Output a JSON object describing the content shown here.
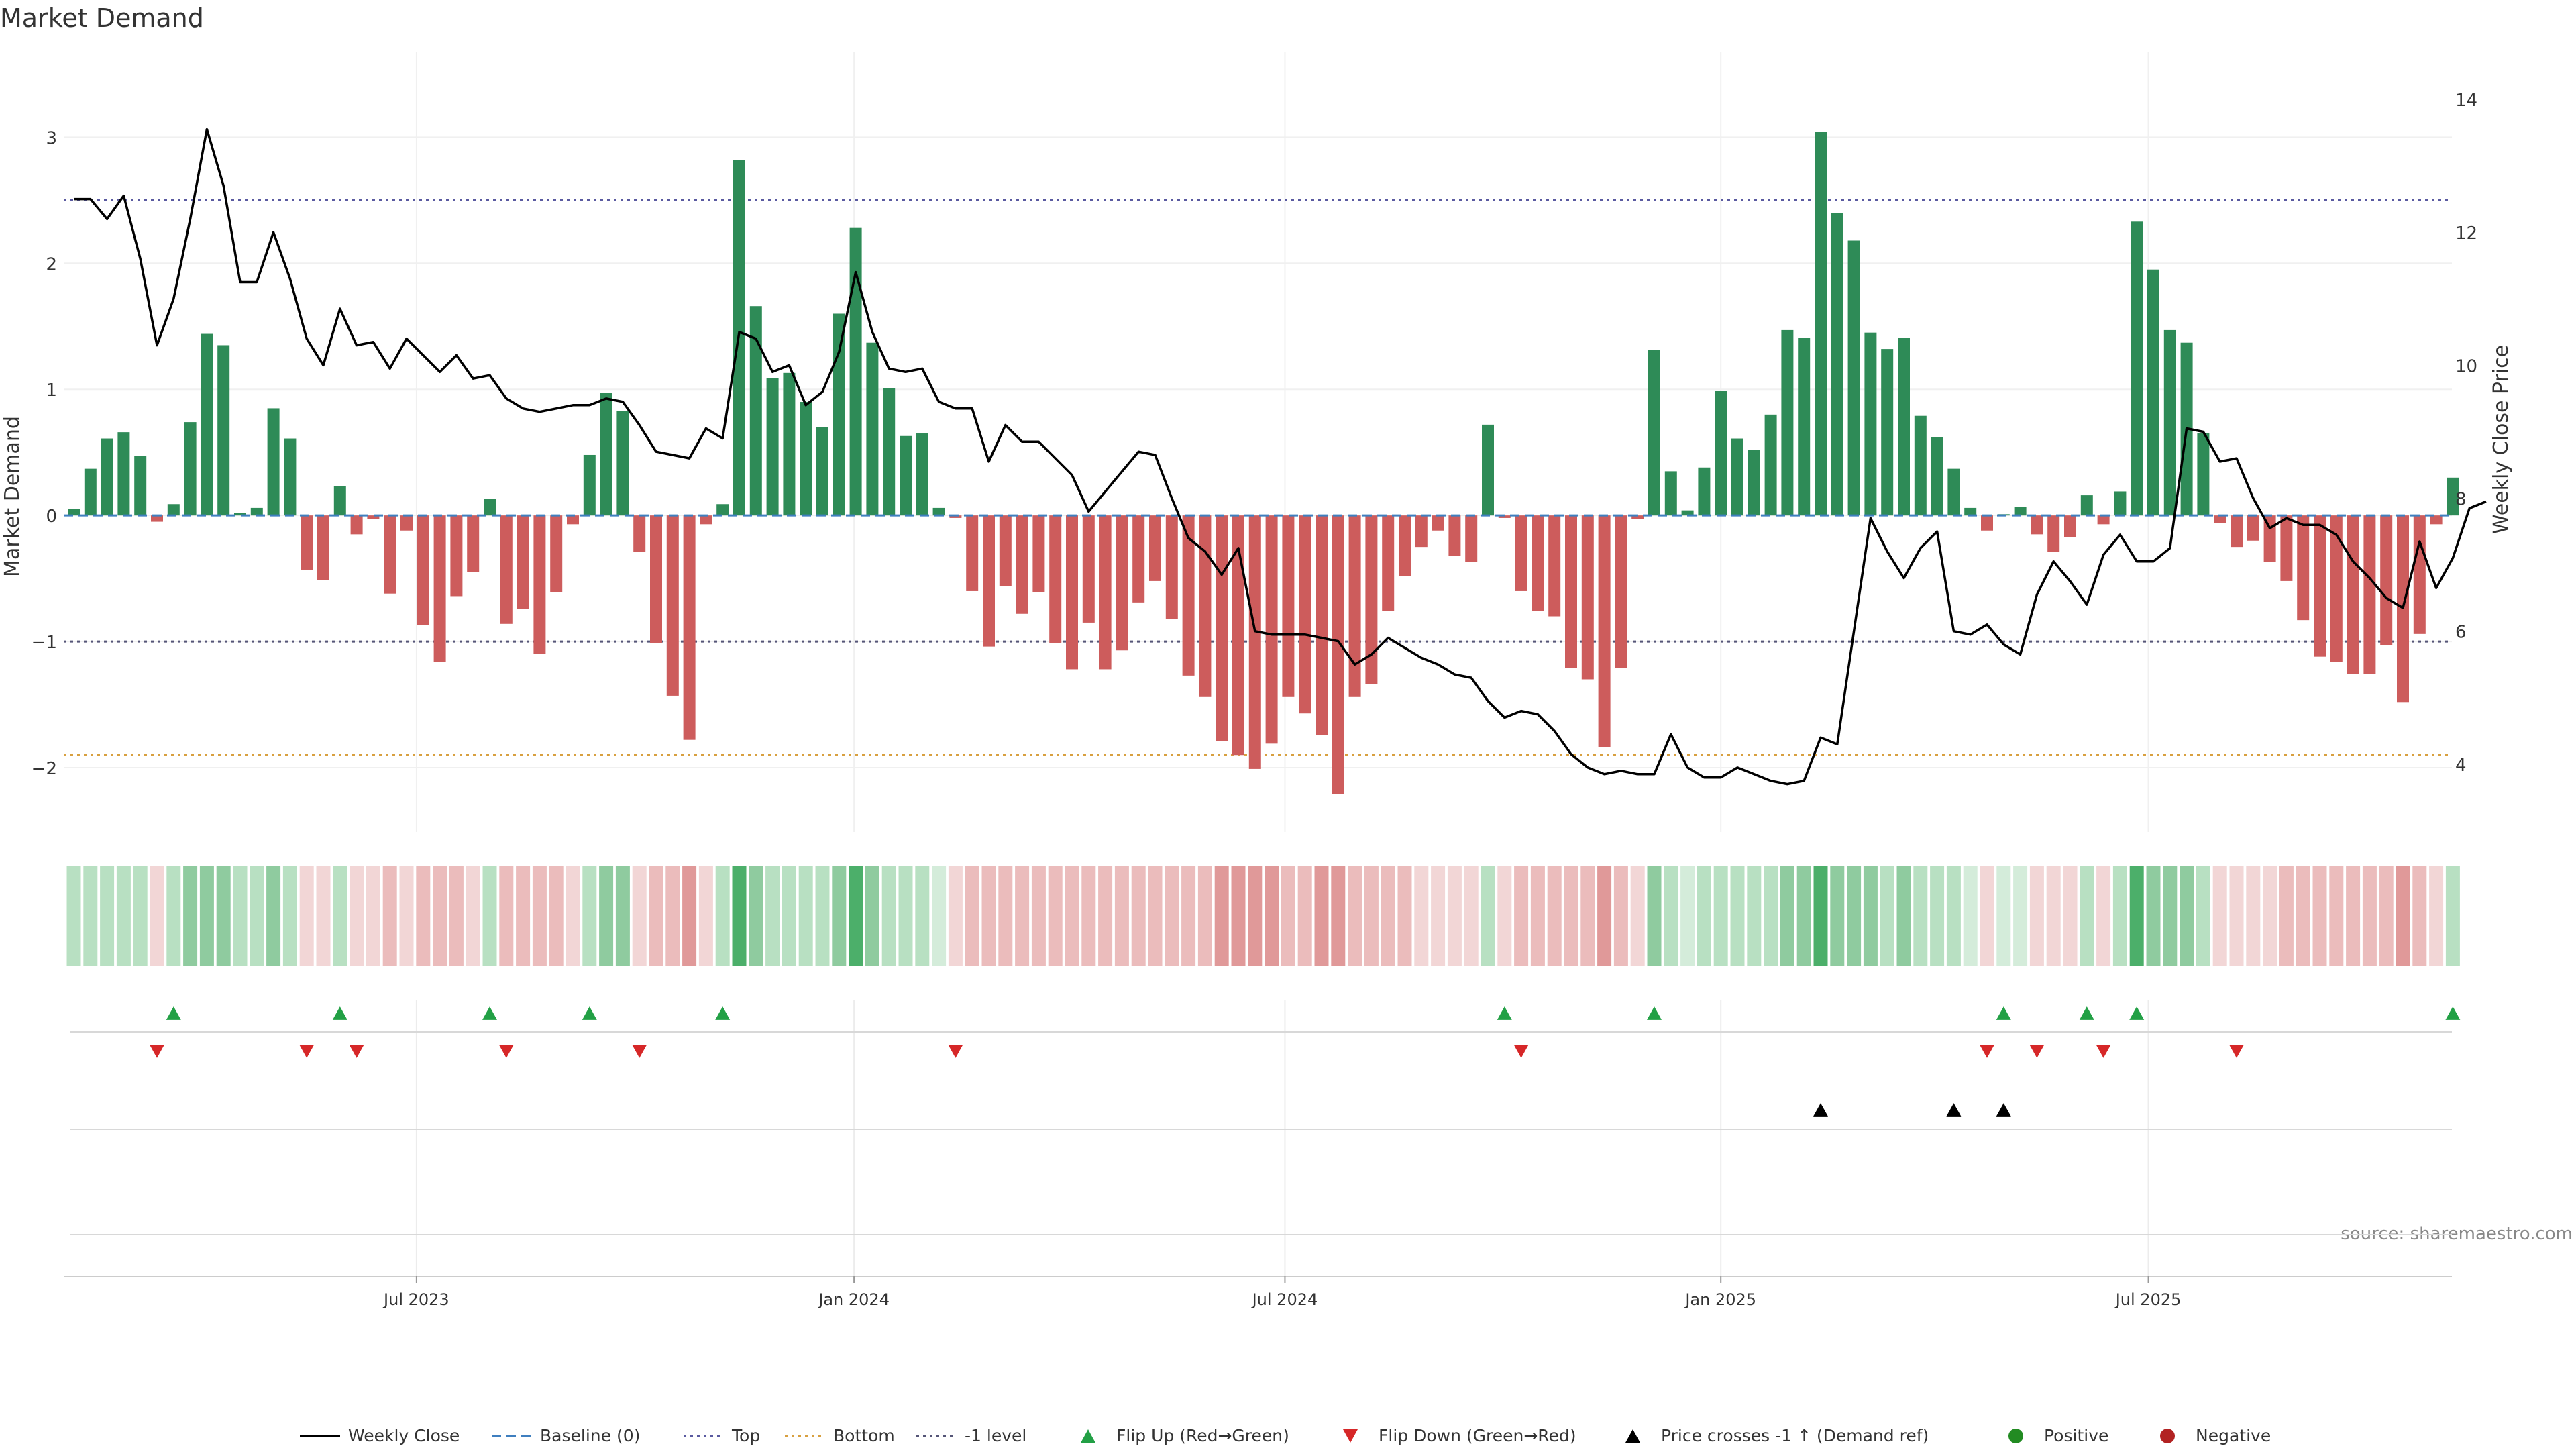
{
  "chart_data": {
    "type": "bar",
    "title": "Market Demand",
    "ylabel": "Market Demand",
    "ylabel_right": "Weekly Close Price",
    "ylim": [
      -2.5,
      3.3
    ],
    "ylim_right": [
      3.0,
      14.0
    ],
    "y_ticks": [
      -2,
      -1,
      0,
      1,
      2,
      3
    ],
    "y_ticks_right": [
      4,
      6,
      8,
      10,
      12,
      14
    ],
    "x_ticks": [
      "Jul 2023",
      "Jan 2024",
      "Jul 2024",
      "Jan 2025",
      "Jul 2025"
    ],
    "x_tick_index": [
      20.6,
      46.9,
      72.8,
      99.0,
      124.7
    ],
    "reference_lines": {
      "top": 2.5,
      "bottom": -1.9,
      "minus_one": -1.0,
      "baseline": 0
    },
    "colors": {
      "positive": "#2e8b57",
      "negative": "#cd5c5c",
      "price": "#000000",
      "top": "#5a5aa0",
      "bottom": "#d8a040",
      "minus_one": "#555577",
      "baseline": "#3f7fbf",
      "flip_up": "#22a045",
      "flip_down": "#d62728",
      "cross": "#000000",
      "dot_positive": "#228b22",
      "dot_negative": "#b22222"
    },
    "series": [
      {
        "name": "Market Demand",
        "values": [
          0.05,
          0.37,
          0.61,
          0.66,
          0.47,
          -0.05,
          0.09,
          0.74,
          1.44,
          1.35,
          0.02,
          0.06,
          0.85,
          0.61,
          -0.43,
          -0.51,
          0.23,
          -0.15,
          -0.03,
          -0.62,
          -0.12,
          -0.87,
          -1.16,
          -0.64,
          -0.45,
          0.13,
          -0.86,
          -0.74,
          -1.1,
          -0.61,
          -0.07,
          0.48,
          0.97,
          0.83,
          -0.29,
          -1.01,
          -1.43,
          -1.78,
          -0.07,
          0.09,
          2.82,
          1.66,
          1.09,
          1.13,
          0.9,
          0.7,
          1.6,
          2.28,
          1.37,
          1.01,
          0.63,
          0.65,
          0.06,
          -0.02,
          -0.6,
          -1.04,
          -0.56,
          -0.78,
          -0.61,
          -1.01,
          -1.22,
          -0.85,
          -1.22,
          -1.07,
          -0.69,
          -0.52,
          -0.82,
          -1.27,
          -1.44,
          -1.79,
          -1.9,
          -2.01,
          -1.81,
          -1.44,
          -1.57,
          -1.74,
          -2.21,
          -1.44,
          -1.34,
          -0.76,
          -0.48,
          -0.25,
          -0.12,
          -0.32,
          -0.37,
          0.72,
          -0.02,
          -0.6,
          -0.76,
          -0.8,
          -1.21,
          -1.3,
          -1.84,
          -1.21,
          -0.03,
          1.31,
          0.35,
          0.04,
          0.38,
          0.99,
          0.61,
          0.52,
          0.8,
          1.47,
          1.41,
          3.04,
          2.4,
          2.18,
          1.45,
          1.32,
          1.41,
          0.79,
          0.62,
          0.37,
          0.06,
          -0.12,
          0.01,
          0.07,
          -0.15,
          -0.29,
          -0.17,
          0.16,
          -0.07,
          0.19,
          2.33,
          1.95,
          1.47,
          1.37,
          0.65,
          -0.06,
          -0.25,
          -0.2,
          -0.37,
          -0.52,
          -0.83,
          -1.12,
          -1.16,
          -1.26,
          -1.26,
          -1.03,
          -1.48,
          -0.94,
          -0.07,
          0.3
        ]
      },
      {
        "name": "Weekly Close",
        "axis": "right",
        "values": [
          12.5,
          12.5,
          12.2,
          12.55,
          11.6,
          10.3,
          11.0,
          12.2,
          13.55,
          12.7,
          11.25,
          11.25,
          12.0,
          11.3,
          10.4,
          10.0,
          10.85,
          10.3,
          10.35,
          9.95,
          10.4,
          10.15,
          9.9,
          10.15,
          9.8,
          9.85,
          9.5,
          9.35,
          9.3,
          9.35,
          9.4,
          9.4,
          9.5,
          9.45,
          9.1,
          8.7,
          8.65,
          8.6,
          9.05,
          8.9,
          10.5,
          10.4,
          9.9,
          10.0,
          9.4,
          9.6,
          10.2,
          11.4,
          10.5,
          9.95,
          9.9,
          9.95,
          9.45,
          9.35,
          9.35,
          8.55,
          9.1,
          8.85,
          8.85,
          8.6,
          8.35,
          7.8,
          8.1,
          8.4,
          8.7,
          8.65,
          8.0,
          7.4,
          7.2,
          6.85,
          7.25,
          6.0,
          5.95,
          5.95,
          5.95,
          5.9,
          5.85,
          5.5,
          5.65,
          5.9,
          5.75,
          5.6,
          5.5,
          5.35,
          5.3,
          4.95,
          4.7,
          4.8,
          4.75,
          4.5,
          4.15,
          3.95,
          3.85,
          3.9,
          3.85,
          3.85,
          4.45,
          3.95,
          3.8,
          3.8,
          3.95,
          3.85,
          3.75,
          3.7,
          3.75,
          4.4,
          4.3,
          6.0,
          7.7,
          7.2,
          6.8,
          7.25,
          7.5,
          6.0,
          5.95,
          6.1,
          5.8,
          5.65,
          6.55,
          7.05,
          6.75,
          6.4,
          7.15,
          7.45,
          7.05,
          7.05,
          7.25,
          9.05,
          9.0,
          8.55,
          8.6,
          8.0,
          7.55,
          7.7,
          7.6,
          7.6,
          7.45,
          7.05,
          6.8,
          6.5,
          6.35,
          7.35,
          6.65,
          7.1,
          7.85,
          7.95
        ]
      }
    ],
    "band_levels": [
      1,
      1,
      1,
      1,
      1,
      0,
      1,
      2,
      2,
      2,
      1,
      1,
      2,
      1,
      0,
      0,
      1,
      0,
      0,
      1,
      0,
      1,
      1,
      1,
      0,
      1,
      1,
      1,
      1,
      1,
      0,
      1,
      2,
      2,
      0,
      1,
      1,
      2,
      0,
      1,
      3,
      2,
      1,
      1,
      1,
      1,
      2,
      3,
      2,
      1,
      1,
      1,
      0,
      0,
      1,
      1,
      1,
      1,
      1,
      1,
      1,
      1,
      1,
      1,
      1,
      1,
      1,
      1,
      1,
      2,
      2,
      2,
      2,
      1,
      1,
      2,
      2,
      1,
      1,
      1,
      1,
      0,
      0,
      0,
      0,
      1,
      0,
      1,
      1,
      1,
      1,
      1,
      2,
      1,
      0,
      2,
      1,
      0,
      1,
      1,
      1,
      1,
      1,
      2,
      2,
      3,
      2,
      2,
      2,
      1,
      2,
      1,
      1,
      1,
      0,
      0,
      0,
      0,
      0,
      0,
      0,
      1,
      0,
      1,
      3,
      2,
      2,
      2,
      1,
      0,
      0,
      0,
      0,
      1,
      1,
      1,
      1,
      1,
      1,
      1,
      2,
      1,
      0,
      1
    ],
    "events": {
      "flip_up": [
        6,
        16,
        25,
        31,
        39,
        86,
        95,
        116,
        121,
        124,
        143
      ],
      "flip_down": [
        5,
        14,
        17,
        26,
        34,
        53,
        87,
        115,
        118,
        122,
        130
      ],
      "price_cross_up": [
        105,
        113,
        116
      ]
    },
    "legend": [
      {
        "label": "Weekly Close",
        "symbol": "line",
        "color": "#000000"
      },
      {
        "label": "Baseline (0)",
        "symbol": "dash",
        "color": "#3f7fbf"
      },
      {
        "label": "Top",
        "symbol": "dot-line",
        "color": "#5a5aa0"
      },
      {
        "label": "Bottom",
        "symbol": "dot-line",
        "color": "#d8a040"
      },
      {
        "label": "-1 level",
        "symbol": "dot-line",
        "color": "#555577"
      },
      {
        "label": "Flip Up (Red→Green)",
        "symbol": "tri-up",
        "color": "#22a045"
      },
      {
        "label": "Flip Down (Green→Red)",
        "symbol": "tri-down",
        "color": "#d62728"
      },
      {
        "label": "Price crosses -1 ↑ (Demand ref)",
        "symbol": "tri-up",
        "color": "#000000"
      },
      {
        "label": "Positive",
        "symbol": "dot",
        "color": "#228b22"
      },
      {
        "label": "Negative",
        "symbol": "dot",
        "color": "#b22222"
      }
    ],
    "legend_placement": "bottom",
    "grid": true,
    "source": "source: sharemaestro.com"
  }
}
